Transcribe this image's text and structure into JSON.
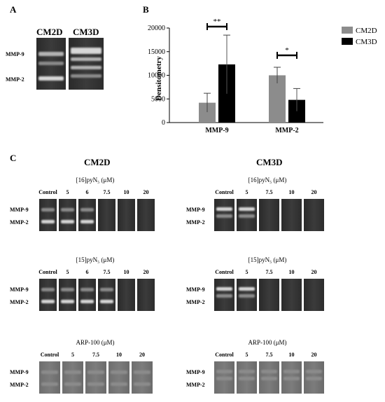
{
  "panel_a": {
    "letter": "A",
    "col_labels": [
      "CM2D",
      "CM3D"
    ],
    "row_labels": [
      "MMP-9",
      "MMP-2"
    ]
  },
  "panel_b": {
    "letter": "B"
  },
  "chart_data": {
    "type": "bar",
    "categories": [
      "MMP-9",
      "MMP-2"
    ],
    "series": [
      {
        "name": "CM2D",
        "values": [
          4200,
          10000
        ],
        "errors": [
          2000,
          1700
        ],
        "color": "#8c8c8c"
      },
      {
        "name": "CM3D",
        "values": [
          12300,
          4800
        ],
        "errors": [
          6200,
          2400
        ],
        "color": "#000000"
      }
    ],
    "ylabel": "Densitometry",
    "ylim": [
      0,
      20000
    ],
    "yticks": [
      "0",
      "5000",
      "10000",
      "15000",
      "20000"
    ],
    "significance": [
      "**",
      "*"
    ],
    "legend_position": "right",
    "grid": false
  },
  "panel_c": {
    "letter": "C",
    "titles": [
      "CM2D",
      "CM3D"
    ],
    "blots": [
      {
        "header": "[16]pyN₅ (μM)",
        "lanes": [
          "Control",
          "5",
          "6",
          "7.5",
          "10",
          "20"
        ]
      },
      {
        "header": "[16]pyN₅ (μM)",
        "lanes": [
          "Control",
          "5",
          "7.5",
          "10",
          "20"
        ]
      },
      {
        "header": "[15]pyN₅ (μM)",
        "lanes": [
          "Control",
          "5",
          "6",
          "7.5",
          "10",
          "20"
        ]
      },
      {
        "header": "[15]pyN₅ (μM)",
        "lanes": [
          "Control",
          "5",
          "7.5",
          "10",
          "20"
        ]
      },
      {
        "header": "ARP-100 (μM)",
        "lanes": [
          "Control",
          "5",
          "7.5",
          "10",
          "20"
        ]
      },
      {
        "header": "ARP-100 (μM)",
        "lanes": [
          "Control",
          "5",
          "7.5",
          "10",
          "20"
        ]
      }
    ],
    "row_labels": [
      "MMP-9",
      "MMP-2"
    ]
  }
}
